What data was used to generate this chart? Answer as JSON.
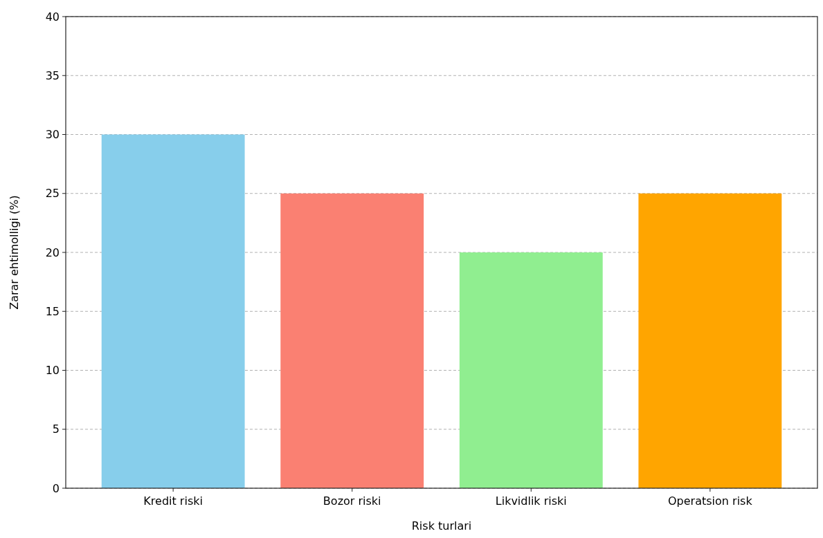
{
  "chart_data": {
    "type": "bar",
    "xlabel": "Risk turlari",
    "ylabel": "Zarar ehtimolligi (%)",
    "categories": [
      "Kredit riski",
      "Bozor riski",
      "Likvidlik riski",
      "Operatsion risk"
    ],
    "values": [
      30,
      25,
      20,
      25
    ],
    "colors": [
      "#87ceeb",
      "#fa8072",
      "#90ee90",
      "#ffa500"
    ],
    "ylim": [
      0,
      40
    ],
    "yticks": [
      0,
      5,
      10,
      15,
      20,
      25,
      30,
      35,
      40
    ],
    "grid": "y"
  }
}
